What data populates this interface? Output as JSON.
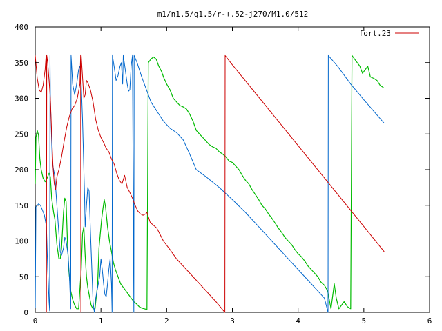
{
  "chart_data": {
    "type": "line",
    "title": "m1/n1.5/q1.5/r-+.52-j270/M1.0/512",
    "xlabel": "",
    "ylabel": "",
    "xlim": [
      0,
      6
    ],
    "ylim": [
      0,
      400
    ],
    "x_ticks": [
      0,
      1,
      2,
      3,
      4,
      5,
      6
    ],
    "y_ticks": [
      0,
      50,
      100,
      150,
      200,
      250,
      300,
      350,
      400
    ],
    "grid": false,
    "legend_position": "top-right",
    "legend_label": "fort.23",
    "series": [
      {
        "name": "fort.23",
        "color": "#cc0000",
        "points": [
          [
            0.0,
            360
          ],
          [
            0.03,
            328
          ],
          [
            0.06,
            312
          ],
          [
            0.09,
            308
          ],
          [
            0.12,
            318
          ],
          [
            0.15,
            340
          ],
          [
            0.165,
            360
          ],
          [
            0.17,
            0
          ],
          [
            0.175,
            360
          ],
          [
            0.19,
            350
          ],
          [
            0.21,
            325
          ],
          [
            0.23,
            300
          ],
          [
            0.25,
            250
          ],
          [
            0.27,
            205
          ],
          [
            0.29,
            180
          ],
          [
            0.31,
            172
          ],
          [
            0.33,
            190
          ],
          [
            0.36,
            200
          ],
          [
            0.4,
            218
          ],
          [
            0.44,
            240
          ],
          [
            0.48,
            260
          ],
          [
            0.52,
            275
          ],
          [
            0.56,
            285
          ],
          [
            0.6,
            290
          ],
          [
            0.64,
            300
          ],
          [
            0.68,
            320
          ],
          [
            0.69,
            360
          ],
          [
            0.695,
            0
          ],
          [
            0.7,
            360
          ],
          [
            0.72,
            330
          ],
          [
            0.74,
            300
          ],
          [
            0.76,
            305
          ],
          [
            0.78,
            325
          ],
          [
            0.8,
            322
          ],
          [
            0.84,
            312
          ],
          [
            0.88,
            295
          ],
          [
            0.92,
            270
          ],
          [
            0.96,
            255
          ],
          [
            1.0,
            245
          ],
          [
            1.04,
            238
          ],
          [
            1.08,
            230
          ],
          [
            1.12,
            225
          ],
          [
            1.16,
            215
          ],
          [
            1.2,
            208
          ],
          [
            1.24,
            195
          ],
          [
            1.28,
            185
          ],
          [
            1.32,
            180
          ],
          [
            1.36,
            192
          ],
          [
            1.4,
            175
          ],
          [
            1.44,
            168
          ],
          [
            1.48,
            160
          ],
          [
            1.52,
            150
          ],
          [
            1.56,
            142
          ],
          [
            1.6,
            138
          ],
          [
            1.64,
            136
          ],
          [
            1.68,
            138
          ],
          [
            1.7,
            140
          ],
          [
            1.75,
            126
          ],
          [
            1.85,
            118
          ],
          [
            1.95,
            100
          ],
          [
            2.05,
            88
          ],
          [
            2.15,
            75
          ],
          [
            2.3,
            60
          ],
          [
            2.45,
            45
          ],
          [
            2.6,
            30
          ],
          [
            2.75,
            15
          ],
          [
            2.885,
            0
          ],
          [
            2.89,
            360
          ],
          [
            3.0,
            347
          ],
          [
            3.3,
            313
          ],
          [
            3.6,
            279
          ],
          [
            3.9,
            245
          ],
          [
            4.2,
            211
          ],
          [
            4.5,
            177
          ],
          [
            4.8,
            143
          ],
          [
            5.1,
            109
          ],
          [
            5.31,
            85
          ]
        ]
      },
      {
        "name": "",
        "color": "#0066cc",
        "points": [
          [
            0.0,
            0
          ],
          [
            0.01,
            148
          ],
          [
            0.05,
            152
          ],
          [
            0.08,
            150
          ],
          [
            0.11,
            143
          ],
          [
            0.14,
            136
          ],
          [
            0.17,
            120
          ],
          [
            0.19,
            60
          ],
          [
            0.2,
            40
          ],
          [
            0.21,
            15
          ],
          [
            0.22,
            2
          ],
          [
            0.225,
            360
          ],
          [
            0.23,
            300
          ],
          [
            0.26,
            210
          ],
          [
            0.3,
            190
          ],
          [
            0.33,
            150
          ],
          [
            0.36,
            110
          ],
          [
            0.38,
            85
          ],
          [
            0.4,
            80
          ],
          [
            0.43,
            90
          ],
          [
            0.45,
            105
          ],
          [
            0.47,
            100
          ],
          [
            0.5,
            80
          ],
          [
            0.52,
            50
          ],
          [
            0.54,
            5
          ],
          [
            0.545,
            360
          ],
          [
            0.57,
            320
          ],
          [
            0.6,
            305
          ],
          [
            0.63,
            320
          ],
          [
            0.66,
            340
          ],
          [
            0.68,
            345
          ],
          [
            0.7,
            320
          ],
          [
            0.72,
            270
          ],
          [
            0.74,
            200
          ],
          [
            0.75,
            165
          ],
          [
            0.76,
            120
          ],
          [
            0.78,
            150
          ],
          [
            0.8,
            175
          ],
          [
            0.82,
            170
          ],
          [
            0.84,
            115
          ],
          [
            0.86,
            65
          ],
          [
            0.88,
            15
          ],
          [
            0.9,
            0
          ],
          [
            0.92,
            20
          ],
          [
            0.95,
            35
          ],
          [
            0.98,
            50
          ],
          [
            1.0,
            75
          ],
          [
            1.02,
            60
          ],
          [
            1.04,
            40
          ],
          [
            1.06,
            25
          ],
          [
            1.08,
            22
          ],
          [
            1.1,
            40
          ],
          [
            1.12,
            60
          ],
          [
            1.14,
            75
          ],
          [
            1.16,
            40
          ],
          [
            1.17,
            0
          ],
          [
            1.175,
            360
          ],
          [
            1.2,
            345
          ],
          [
            1.23,
            325
          ],
          [
            1.26,
            332
          ],
          [
            1.29,
            345
          ],
          [
            1.31,
            350
          ],
          [
            1.33,
            320
          ],
          [
            1.34,
            360
          ],
          [
            1.37,
            340
          ],
          [
            1.4,
            320
          ],
          [
            1.42,
            310
          ],
          [
            1.44,
            312
          ],
          [
            1.46,
            345
          ],
          [
            1.48,
            360
          ],
          [
            1.5,
            0
          ],
          [
            1.505,
            360
          ],
          [
            1.55,
            350
          ],
          [
            1.62,
            330
          ],
          [
            1.7,
            310
          ],
          [
            1.76,
            295
          ],
          [
            1.85,
            282
          ],
          [
            1.95,
            268
          ],
          [
            2.05,
            258
          ],
          [
            2.15,
            252
          ],
          [
            2.25,
            242
          ],
          [
            2.3,
            232
          ],
          [
            2.35,
            222
          ],
          [
            2.45,
            200
          ],
          [
            2.6,
            190
          ],
          [
            2.8,
            175
          ],
          [
            3.0,
            158
          ],
          [
            3.2,
            140
          ],
          [
            3.4,
            120
          ],
          [
            3.6,
            100
          ],
          [
            3.8,
            80
          ],
          [
            4.0,
            60
          ],
          [
            4.2,
            40
          ],
          [
            4.4,
            20
          ],
          [
            4.455,
            0
          ],
          [
            4.46,
            360
          ],
          [
            4.6,
            345
          ],
          [
            4.8,
            320
          ],
          [
            5.0,
            298
          ],
          [
            5.31,
            265
          ]
        ]
      },
      {
        "name": "",
        "color": "#00bb00",
        "points": [
          [
            0.0,
            180
          ],
          [
            0.01,
            245
          ],
          [
            0.03,
            255
          ],
          [
            0.05,
            248
          ],
          [
            0.07,
            215
          ],
          [
            0.09,
            200
          ],
          [
            0.12,
            188
          ],
          [
            0.15,
            183
          ],
          [
            0.18,
            188
          ],
          [
            0.21,
            195
          ],
          [
            0.23,
            190
          ],
          [
            0.25,
            160
          ],
          [
            0.28,
            140
          ],
          [
            0.3,
            130
          ],
          [
            0.33,
            95
          ],
          [
            0.36,
            75
          ],
          [
            0.38,
            75
          ],
          [
            0.4,
            90
          ],
          [
            0.43,
            140
          ],
          [
            0.45,
            160
          ],
          [
            0.47,
            155
          ],
          [
            0.49,
            100
          ],
          [
            0.51,
            60
          ],
          [
            0.54,
            30
          ],
          [
            0.57,
            18
          ],
          [
            0.6,
            10
          ],
          [
            0.63,
            5
          ],
          [
            0.66,
            5
          ],
          [
            0.7,
            60
          ],
          [
            0.72,
            110
          ],
          [
            0.74,
            120
          ],
          [
            0.76,
            80
          ],
          [
            0.78,
            50
          ],
          [
            0.8,
            35
          ],
          [
            0.82,
            25
          ],
          [
            0.85,
            10
          ],
          [
            0.88,
            5
          ],
          [
            0.91,
            5
          ],
          [
            0.95,
            40
          ],
          [
            0.97,
            90
          ],
          [
            0.99,
            110
          ],
          [
            1.01,
            130
          ],
          [
            1.03,
            145
          ],
          [
            1.05,
            158
          ],
          [
            1.07,
            148
          ],
          [
            1.1,
            120
          ],
          [
            1.13,
            100
          ],
          [
            1.16,
            85
          ],
          [
            1.19,
            70
          ],
          [
            1.22,
            60
          ],
          [
            1.26,
            50
          ],
          [
            1.3,
            40
          ],
          [
            1.34,
            35
          ],
          [
            1.38,
            30
          ],
          [
            1.42,
            25
          ],
          [
            1.46,
            20
          ],
          [
            1.5,
            15
          ],
          [
            1.54,
            12
          ],
          [
            1.58,
            8
          ],
          [
            1.62,
            6
          ],
          [
            1.66,
            5
          ],
          [
            1.7,
            4
          ],
          [
            1.72,
            350
          ],
          [
            1.76,
            355
          ],
          [
            1.8,
            358
          ],
          [
            1.84,
            355
          ],
          [
            1.88,
            345
          ],
          [
            1.92,
            338
          ],
          [
            1.96,
            328
          ],
          [
            2.0,
            320
          ],
          [
            2.05,
            312
          ],
          [
            2.1,
            300
          ],
          [
            2.15,
            295
          ],
          [
            2.2,
            290
          ],
          [
            2.25,
            288
          ],
          [
            2.3,
            285
          ],
          [
            2.35,
            278
          ],
          [
            2.4,
            268
          ],
          [
            2.45,
            255
          ],
          [
            2.5,
            250
          ],
          [
            2.55,
            245
          ],
          [
            2.6,
            240
          ],
          [
            2.65,
            235
          ],
          [
            2.7,
            232
          ],
          [
            2.75,
            230
          ],
          [
            2.8,
            225
          ],
          [
            2.85,
            222
          ],
          [
            2.9,
            218
          ],
          [
            2.95,
            212
          ],
          [
            3.0,
            210
          ],
          [
            3.05,
            205
          ],
          [
            3.1,
            200
          ],
          [
            3.15,
            192
          ],
          [
            3.2,
            185
          ],
          [
            3.25,
            180
          ],
          [
            3.3,
            172
          ],
          [
            3.35,
            165
          ],
          [
            3.4,
            158
          ],
          [
            3.45,
            150
          ],
          [
            3.5,
            145
          ],
          [
            3.55,
            138
          ],
          [
            3.6,
            132
          ],
          [
            3.65,
            125
          ],
          [
            3.7,
            118
          ],
          [
            3.75,
            112
          ],
          [
            3.8,
            105
          ],
          [
            3.85,
            100
          ],
          [
            3.9,
            95
          ],
          [
            3.95,
            88
          ],
          [
            4.0,
            82
          ],
          [
            4.05,
            78
          ],
          [
            4.1,
            72
          ],
          [
            4.15,
            65
          ],
          [
            4.2,
            60
          ],
          [
            4.25,
            55
          ],
          [
            4.3,
            50
          ],
          [
            4.35,
            42
          ],
          [
            4.4,
            38
          ],
          [
            4.45,
            30
          ],
          [
            4.48,
            15
          ],
          [
            4.5,
            5
          ],
          [
            4.55,
            40
          ],
          [
            4.58,
            20
          ],
          [
            4.62,
            5
          ],
          [
            4.66,
            10
          ],
          [
            4.7,
            15
          ],
          [
            4.75,
            8
          ],
          [
            4.8,
            5
          ],
          [
            4.82,
            360
          ],
          [
            4.86,
            355
          ],
          [
            4.9,
            350
          ],
          [
            4.94,
            345
          ],
          [
            4.98,
            335
          ],
          [
            5.02,
            340
          ],
          [
            5.06,
            345
          ],
          [
            5.1,
            330
          ],
          [
            5.15,
            328
          ],
          [
            5.2,
            325
          ],
          [
            5.25,
            318
          ],
          [
            5.3,
            315
          ]
        ]
      }
    ]
  }
}
